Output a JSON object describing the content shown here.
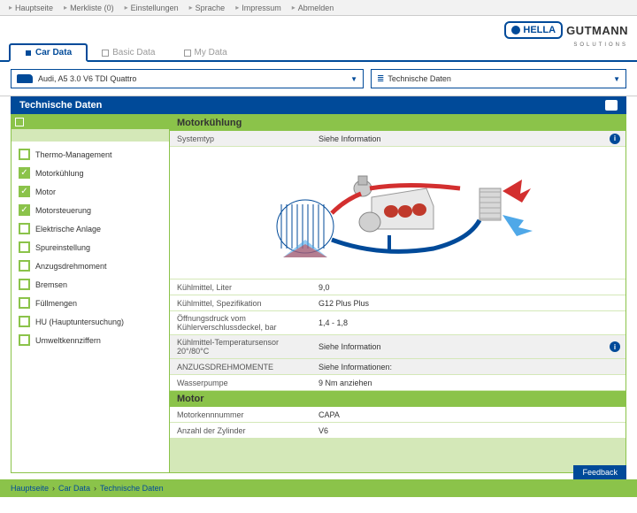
{
  "topnav": [
    "Hauptseite",
    "Merkliste (0)",
    "Einstellungen",
    "Sprache",
    "Impressum",
    "Abmelden"
  ],
  "brand": {
    "hella": "HELLA",
    "gutmann": "GUTMANN",
    "sub": "SOLUTIONS"
  },
  "tabs": [
    {
      "label": "Car Data",
      "active": true
    },
    {
      "label": "Basic Data",
      "active": false
    },
    {
      "label": "My Data",
      "active": false
    }
  ],
  "vehicle_selector": "Audi, A5 3.0 V6 TDI Quattro",
  "data_selector": "Technische Daten",
  "panel_title": "Technische Daten",
  "sidebar_items": [
    {
      "label": "Thermo-Management",
      "checked": false
    },
    {
      "label": "Motorkühlung",
      "checked": true
    },
    {
      "label": "Motor",
      "checked": true
    },
    {
      "label": "Motorsteuerung",
      "checked": true
    },
    {
      "label": "Elektrische Anlage",
      "checked": false
    },
    {
      "label": "Spureinstellung",
      "checked": false
    },
    {
      "label": "Anzugsdrehmoment",
      "checked": false
    },
    {
      "label": "Bremsen",
      "checked": false
    },
    {
      "label": "Füllmengen",
      "checked": false
    },
    {
      "label": "HU (Hauptuntersuchung)",
      "checked": false
    },
    {
      "label": "Umweltkennziffern",
      "checked": false
    }
  ],
  "sections": [
    {
      "title": "Motorkühlung",
      "rows_top": [
        {
          "label": "Systemtyp",
          "value": "Siehe Information",
          "info": true,
          "sub": true
        }
      ],
      "diagram": true,
      "rows_bottom": [
        {
          "label": "Kühlmittel, Liter",
          "value": "9,0"
        },
        {
          "label": "Kühlmittel, Spezifikation",
          "value": "G12 Plus Plus"
        },
        {
          "label": "Öffnungsdruck vom Kühlerverschlussdeckel, bar",
          "value": "1,4 - 1,8"
        },
        {
          "label": "Kühlmittel-Temperatursensor 20°/80°C",
          "value": "Siehe Information",
          "info": true,
          "sub": true
        },
        {
          "label": "ANZUGSDREHMOMENTE",
          "value": "Siehe Informationen:",
          "sub": true
        },
        {
          "label": "Wasserpumpe",
          "value": "9 Nm anziehen"
        }
      ]
    },
    {
      "title": "Motor",
      "rows_bottom": [
        {
          "label": "Motorkennnummer",
          "value": "CAPA"
        },
        {
          "label": "Anzahl der Zylinder",
          "value": "V6"
        }
      ]
    }
  ],
  "breadcrumb": [
    "Hauptseite",
    "Car Data",
    "Technische Daten"
  ],
  "feedback": "Feedback",
  "colors": {
    "primary": "#004a99",
    "accent": "#8bc34a",
    "accent_light": "#d4e8b8"
  }
}
